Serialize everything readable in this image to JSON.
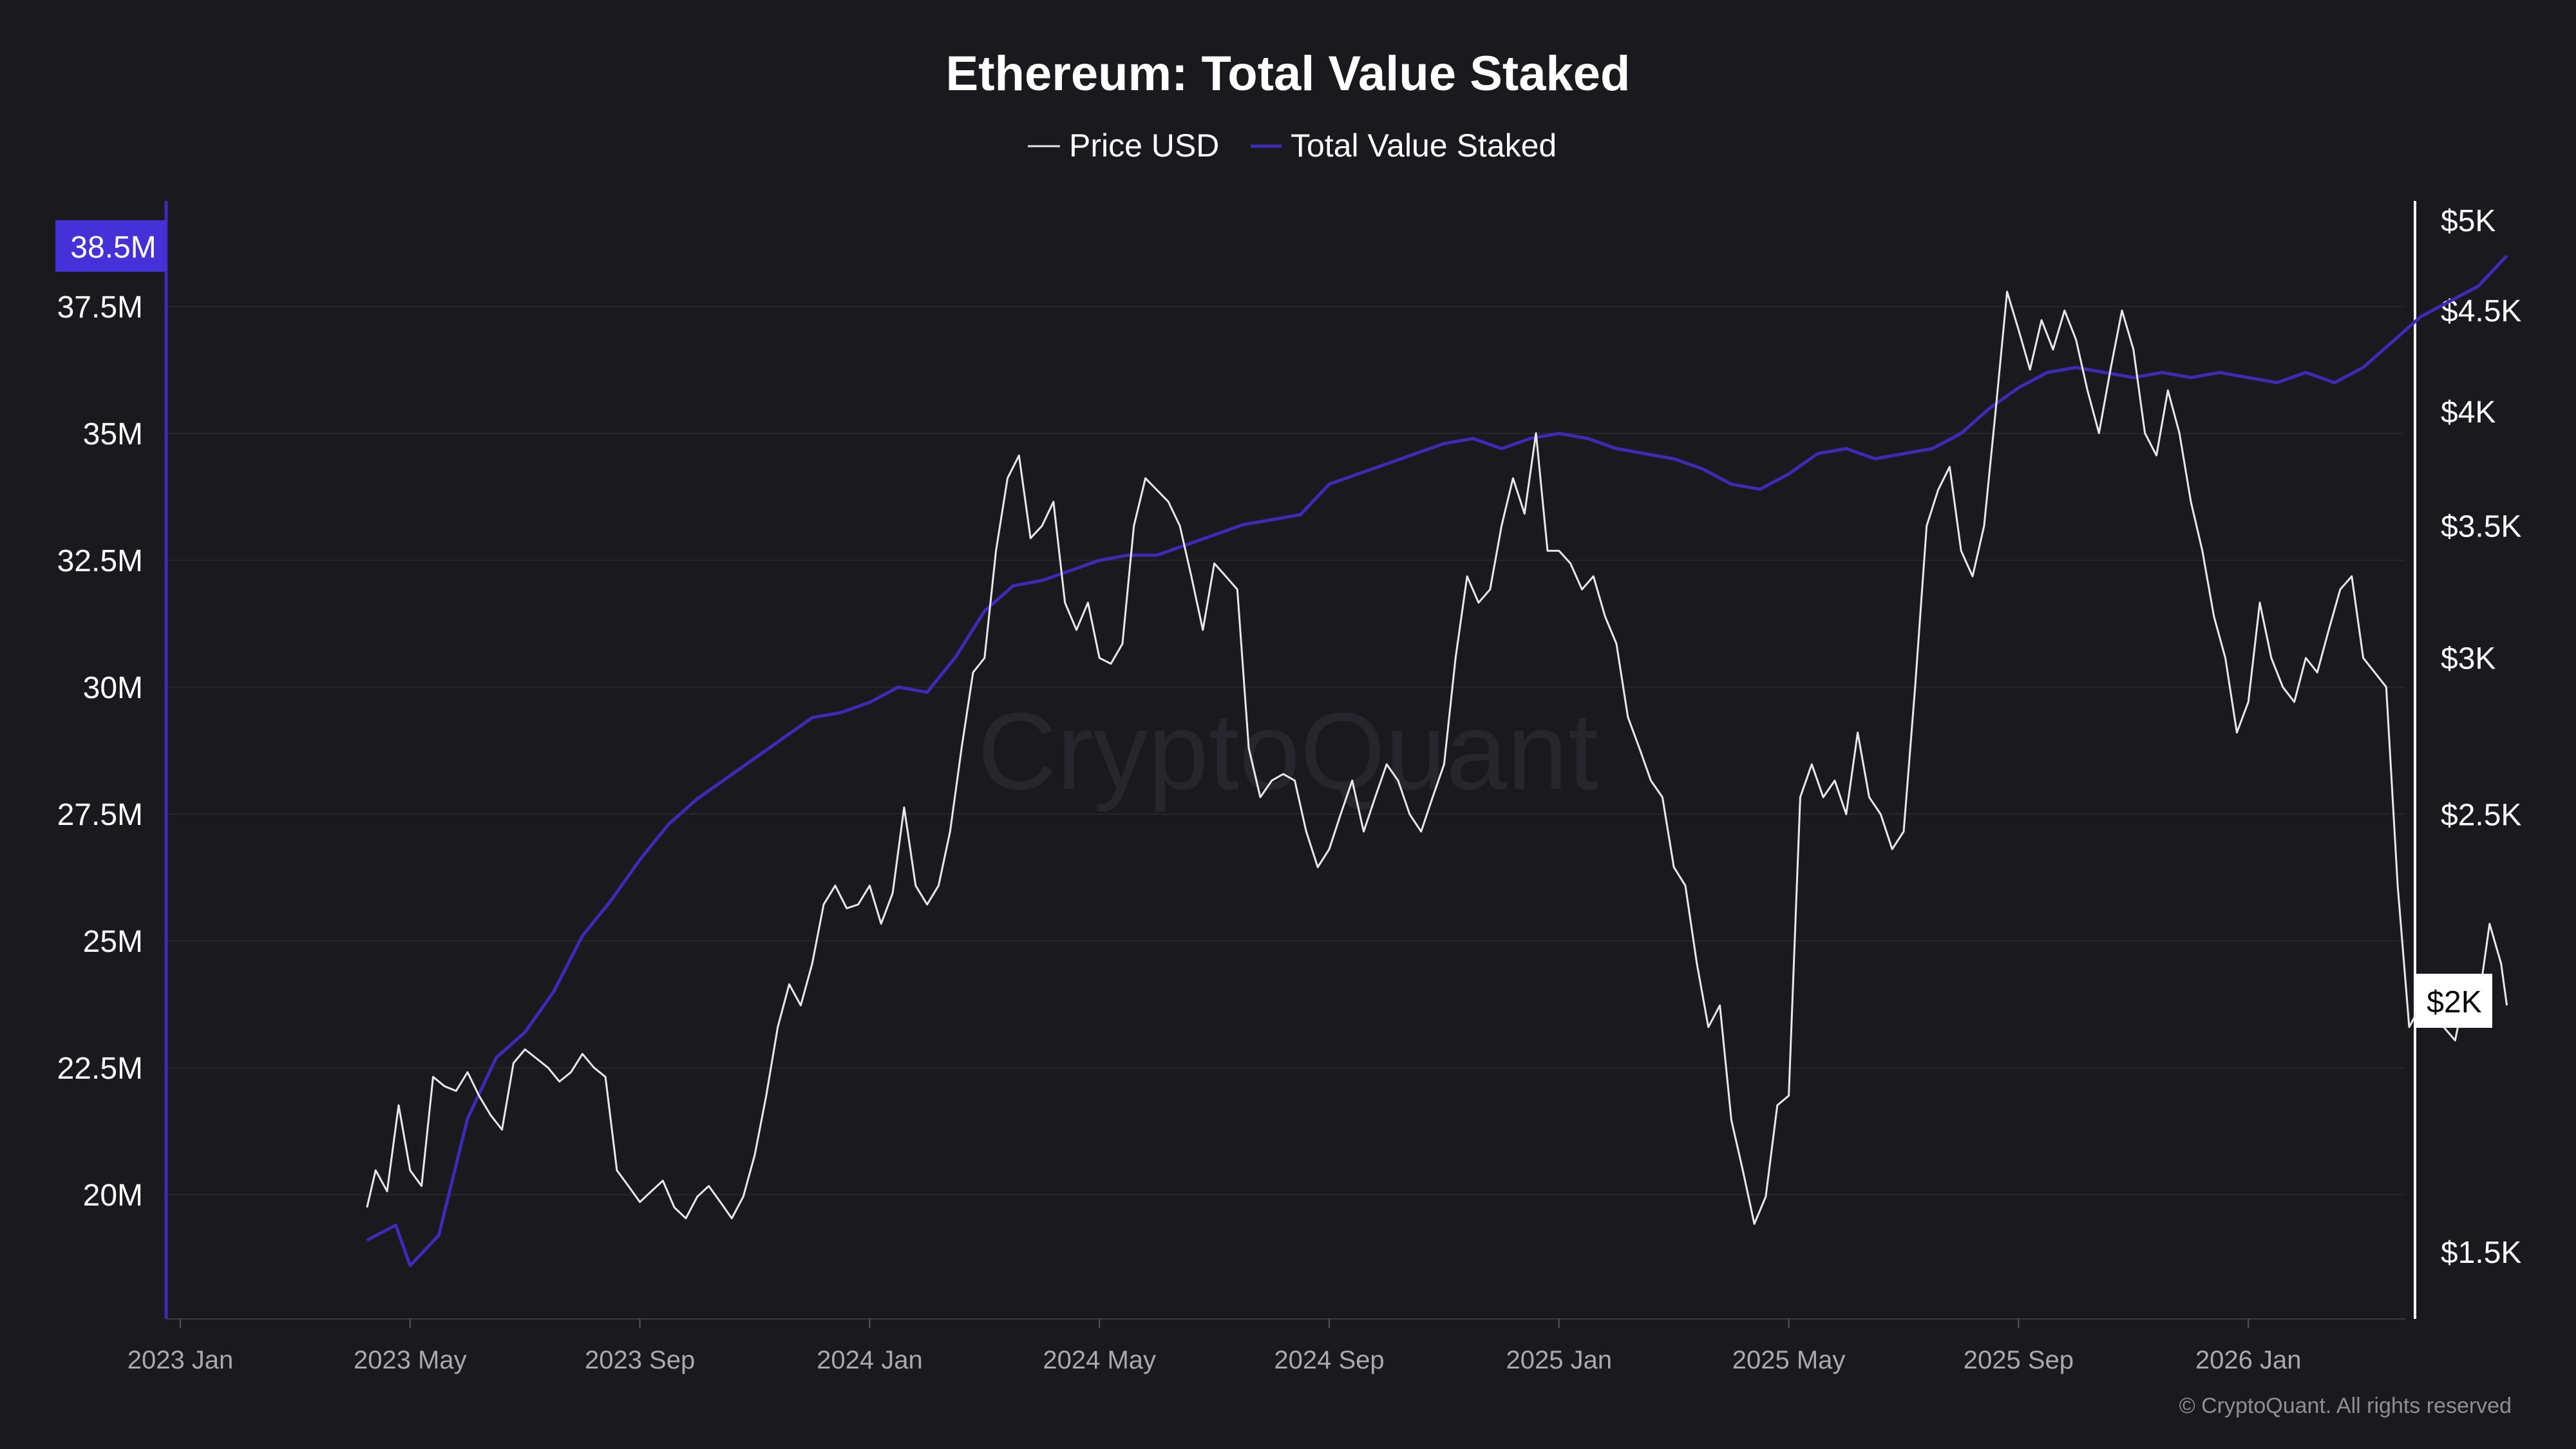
{
  "chart_data": {
    "type": "line",
    "title": "Ethereum: Total Value Staked",
    "legend": [
      {
        "name": "Price USD",
        "color": "#e8e8e8"
      },
      {
        "name": "Total Value Staked",
        "color": "#3d2bb8"
      }
    ],
    "x_ticks": [
      "2023 Jan",
      "2023 May",
      "2023 Sep",
      "2024 Jan",
      "2024 May",
      "2024 Sep",
      "2025 Jan",
      "2025 May",
      "2025 Sep",
      "2026 Jan"
    ],
    "left_axis": {
      "ticks": [
        {
          "value": 20,
          "label": "20M"
        },
        {
          "value": 22.5,
          "label": "22.5M"
        },
        {
          "value": 25,
          "label": "25M"
        },
        {
          "value": 27.5,
          "label": "27.5M"
        },
        {
          "value": 30,
          "label": "30M"
        },
        {
          "value": 32.5,
          "label": "32.5M"
        },
        {
          "value": 35,
          "label": "35M"
        },
        {
          "value": 37.5,
          "label": "37.5M"
        }
      ],
      "current_label": "38.5M",
      "current_value": 38.5
    },
    "right_axis": {
      "scale": "log",
      "ticks": [
        {
          "value": 1500,
          "label": "$1.5K"
        },
        {
          "value": 2500,
          "label": "$2.5K"
        },
        {
          "value": 3000,
          "label": "$3K"
        },
        {
          "value": 3500,
          "label": "$3.5K"
        },
        {
          "value": 4000,
          "label": "$4K"
        },
        {
          "value": 4500,
          "label": "$4.5K"
        },
        {
          "value": 5000,
          "label": "$5K"
        }
      ],
      "current_label": "$2K",
      "current_value": 2000
    },
    "series": [
      {
        "name": "Total Value Staked",
        "axis": "left",
        "unit": "M ETH",
        "points": [
          [
            3.25,
            19.1
          ],
          [
            3.75,
            19.4
          ],
          [
            4.0,
            18.6
          ],
          [
            4.5,
            19.2
          ],
          [
            5.0,
            21.5
          ],
          [
            5.5,
            22.7
          ],
          [
            6.0,
            23.2
          ],
          [
            6.5,
            24.0
          ],
          [
            7.0,
            25.1
          ],
          [
            7.5,
            25.8
          ],
          [
            8.0,
            26.6
          ],
          [
            8.5,
            27.3
          ],
          [
            9.0,
            27.8
          ],
          [
            9.5,
            28.2
          ],
          [
            10.0,
            28.6
          ],
          [
            10.5,
            29.0
          ],
          [
            11.0,
            29.4
          ],
          [
            11.5,
            29.5
          ],
          [
            12.0,
            29.7
          ],
          [
            12.5,
            30.0
          ],
          [
            13.0,
            29.9
          ],
          [
            13.5,
            30.6
          ],
          [
            14.0,
            31.5
          ],
          [
            14.5,
            32.0
          ],
          [
            15.0,
            32.1
          ],
          [
            15.5,
            32.3
          ],
          [
            16.0,
            32.5
          ],
          [
            16.5,
            32.6
          ],
          [
            17.0,
            32.6
          ],
          [
            17.5,
            32.8
          ],
          [
            18.0,
            33.0
          ],
          [
            18.5,
            33.2
          ],
          [
            19.0,
            33.3
          ],
          [
            19.5,
            33.4
          ],
          [
            20.0,
            34.0
          ],
          [
            20.5,
            34.2
          ],
          [
            21.0,
            34.4
          ],
          [
            21.5,
            34.6
          ],
          [
            22.0,
            34.8
          ],
          [
            22.5,
            34.9
          ],
          [
            23.0,
            34.7
          ],
          [
            23.5,
            34.9
          ],
          [
            24.0,
            35.0
          ],
          [
            24.5,
            34.9
          ],
          [
            25.0,
            34.7
          ],
          [
            25.5,
            34.6
          ],
          [
            26.0,
            34.5
          ],
          [
            26.5,
            34.3
          ],
          [
            27.0,
            34.0
          ],
          [
            27.5,
            33.9
          ],
          [
            28.0,
            34.2
          ],
          [
            28.5,
            34.6
          ],
          [
            29.0,
            34.7
          ],
          [
            29.5,
            34.5
          ],
          [
            30.0,
            34.6
          ],
          [
            30.5,
            34.7
          ],
          [
            31.0,
            35.0
          ],
          [
            31.5,
            35.5
          ],
          [
            32.0,
            35.9
          ],
          [
            32.5,
            36.2
          ],
          [
            33.0,
            36.3
          ],
          [
            33.5,
            36.2
          ],
          [
            34.0,
            36.1
          ],
          [
            34.5,
            36.2
          ],
          [
            35.0,
            36.1
          ],
          [
            35.5,
            36.2
          ],
          [
            36.0,
            36.1
          ],
          [
            36.5,
            36.0
          ],
          [
            37.0,
            36.2
          ],
          [
            37.5,
            36.0
          ],
          [
            38.0,
            36.3
          ],
          [
            38.5,
            36.8
          ],
          [
            39.0,
            37.3
          ],
          [
            39.5,
            37.6
          ],
          [
            40.0,
            37.9
          ],
          [
            40.5,
            38.5
          ]
        ]
      },
      {
        "name": "Price USD",
        "axis": "right",
        "unit": "USD",
        "points": [
          [
            3.25,
            1580
          ],
          [
            3.4,
            1650
          ],
          [
            3.6,
            1610
          ],
          [
            3.8,
            1780
          ],
          [
            4.0,
            1650
          ],
          [
            4.2,
            1620
          ],
          [
            4.4,
            1840
          ],
          [
            4.6,
            1820
          ],
          [
            4.8,
            1810
          ],
          [
            5.0,
            1850
          ],
          [
            5.2,
            1800
          ],
          [
            5.4,
            1760
          ],
          [
            5.6,
            1730
          ],
          [
            5.8,
            1870
          ],
          [
            6.0,
            1900
          ],
          [
            6.2,
            1880
          ],
          [
            6.4,
            1860
          ],
          [
            6.6,
            1830
          ],
          [
            6.8,
            1850
          ],
          [
            7.0,
            1890
          ],
          [
            7.2,
            1860
          ],
          [
            7.4,
            1840
          ],
          [
            7.6,
            1650
          ],
          [
            7.8,
            1620
          ],
          [
            8.0,
            1590
          ],
          [
            8.2,
            1610
          ],
          [
            8.4,
            1630
          ],
          [
            8.6,
            1580
          ],
          [
            8.8,
            1560
          ],
          [
            9.0,
            1600
          ],
          [
            9.2,
            1620
          ],
          [
            9.4,
            1590
          ],
          [
            9.6,
            1560
          ],
          [
            9.8,
            1600
          ],
          [
            10.0,
            1680
          ],
          [
            10.2,
            1800
          ],
          [
            10.4,
            1950
          ],
          [
            10.6,
            2050
          ],
          [
            10.8,
            2000
          ],
          [
            11.0,
            2100
          ],
          [
            11.2,
            2250
          ],
          [
            11.4,
            2300
          ],
          [
            11.6,
            2240
          ],
          [
            11.8,
            2250
          ],
          [
            12.0,
            2300
          ],
          [
            12.2,
            2200
          ],
          [
            12.4,
            2280
          ],
          [
            12.6,
            2520
          ],
          [
            12.8,
            2300
          ],
          [
            13.0,
            2250
          ],
          [
            13.2,
            2300
          ],
          [
            13.4,
            2450
          ],
          [
            13.6,
            2700
          ],
          [
            13.8,
            2950
          ],
          [
            14.0,
            3000
          ],
          [
            14.2,
            3400
          ],
          [
            14.4,
            3700
          ],
          [
            14.6,
            3800
          ],
          [
            14.8,
            3450
          ],
          [
            15.0,
            3500
          ],
          [
            15.2,
            3600
          ],
          [
            15.4,
            3200
          ],
          [
            15.6,
            3100
          ],
          [
            15.8,
            3200
          ],
          [
            16.0,
            3000
          ],
          [
            16.2,
            2980
          ],
          [
            16.4,
            3050
          ],
          [
            16.6,
            3500
          ],
          [
            16.8,
            3700
          ],
          [
            17.0,
            3650
          ],
          [
            17.2,
            3600
          ],
          [
            17.4,
            3500
          ],
          [
            17.6,
            3300
          ],
          [
            17.8,
            3100
          ],
          [
            18.0,
            3350
          ],
          [
            18.2,
            3300
          ],
          [
            18.4,
            3250
          ],
          [
            18.6,
            2700
          ],
          [
            18.8,
            2550
          ],
          [
            19.0,
            2600
          ],
          [
            19.2,
            2620
          ],
          [
            19.4,
            2600
          ],
          [
            19.6,
            2450
          ],
          [
            19.8,
            2350
          ],
          [
            20.0,
            2400
          ],
          [
            20.2,
            2500
          ],
          [
            20.4,
            2600
          ],
          [
            20.6,
            2450
          ],
          [
            20.8,
            2550
          ],
          [
            21.0,
            2650
          ],
          [
            21.2,
            2600
          ],
          [
            21.4,
            2500
          ],
          [
            21.6,
            2450
          ],
          [
            21.8,
            2550
          ],
          [
            22.0,
            2650
          ],
          [
            22.2,
            3000
          ],
          [
            22.4,
            3300
          ],
          [
            22.6,
            3200
          ],
          [
            22.8,
            3250
          ],
          [
            23.0,
            3500
          ],
          [
            23.2,
            3700
          ],
          [
            23.4,
            3550
          ],
          [
            23.6,
            3900
          ],
          [
            23.8,
            3400
          ],
          [
            24.0,
            3400
          ],
          [
            24.2,
            3350
          ],
          [
            24.4,
            3250
          ],
          [
            24.6,
            3300
          ],
          [
            24.8,
            3150
          ],
          [
            25.0,
            3050
          ],
          [
            25.2,
            2800
          ],
          [
            25.4,
            2700
          ],
          [
            25.6,
            2600
          ],
          [
            25.8,
            2550
          ],
          [
            26.0,
            2350
          ],
          [
            26.2,
            2300
          ],
          [
            26.4,
            2100
          ],
          [
            26.6,
            1950
          ],
          [
            26.8,
            2000
          ],
          [
            27.0,
            1750
          ],
          [
            27.2,
            1650
          ],
          [
            27.4,
            1550
          ],
          [
            27.6,
            1600
          ],
          [
            27.8,
            1780
          ],
          [
            28.0,
            1800
          ],
          [
            28.2,
            2550
          ],
          [
            28.4,
            2650
          ],
          [
            28.6,
            2550
          ],
          [
            28.8,
            2600
          ],
          [
            29.0,
            2500
          ],
          [
            29.2,
            2750
          ],
          [
            29.4,
            2550
          ],
          [
            29.6,
            2500
          ],
          [
            29.8,
            2400
          ],
          [
            30.0,
            2450
          ],
          [
            30.2,
            2900
          ],
          [
            30.4,
            3500
          ],
          [
            30.6,
            3650
          ],
          [
            30.8,
            3750
          ],
          [
            31.0,
            3400
          ],
          [
            31.2,
            3300
          ],
          [
            31.4,
            3500
          ],
          [
            31.6,
            4000
          ],
          [
            31.8,
            4600
          ],
          [
            32.0,
            4400
          ],
          [
            32.2,
            4200
          ],
          [
            32.4,
            4450
          ],
          [
            32.6,
            4300
          ],
          [
            32.8,
            4500
          ],
          [
            33.0,
            4350
          ],
          [
            33.2,
            4100
          ],
          [
            33.4,
            3900
          ],
          [
            33.6,
            4200
          ],
          [
            33.8,
            4500
          ],
          [
            34.0,
            4300
          ],
          [
            34.2,
            3900
          ],
          [
            34.4,
            3800
          ],
          [
            34.6,
            4100
          ],
          [
            34.8,
            3900
          ],
          [
            35.0,
            3600
          ],
          [
            35.2,
            3400
          ],
          [
            35.4,
            3150
          ],
          [
            35.6,
            3000
          ],
          [
            35.8,
            2750
          ],
          [
            36.0,
            2850
          ],
          [
            36.2,
            3200
          ],
          [
            36.4,
            3000
          ],
          [
            36.6,
            2900
          ],
          [
            36.8,
            2850
          ],
          [
            37.0,
            3000
          ],
          [
            37.2,
            2950
          ],
          [
            37.4,
            3100
          ],
          [
            37.6,
            3250
          ],
          [
            37.8,
            3300
          ],
          [
            38.0,
            3000
          ],
          [
            38.2,
            2950
          ],
          [
            38.4,
            2900
          ],
          [
            38.6,
            2300
          ],
          [
            38.8,
            1950
          ],
          [
            39.0,
            2000
          ],
          [
            39.2,
            2050
          ],
          [
            39.4,
            1950
          ],
          [
            39.6,
            1920
          ],
          [
            39.8,
            2050
          ],
          [
            40.0,
            2000
          ],
          [
            40.2,
            2200
          ],
          [
            40.4,
            2100
          ],
          [
            40.5,
            2000
          ]
        ]
      }
    ]
  },
  "watermark": "CryptoQuant",
  "copyright": "© CryptoQuant. All rights reserved"
}
